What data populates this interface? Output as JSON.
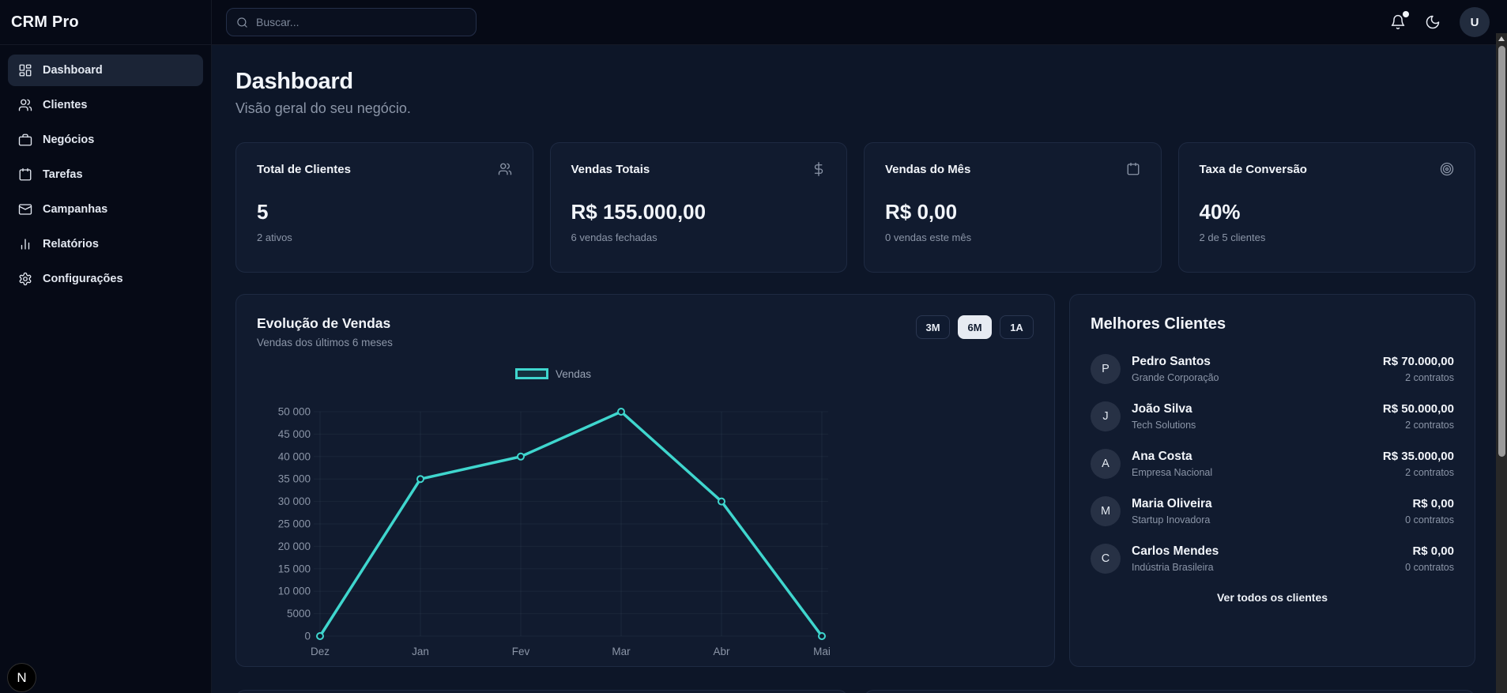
{
  "app": {
    "brand": "CRM Pro"
  },
  "topbar": {
    "search": {
      "placeholder": "Buscar...",
      "icon": "search"
    },
    "notifications": {
      "icon": "bell",
      "has_unread": true
    },
    "theme_toggle": {
      "icon": "moon"
    },
    "avatar": {
      "initial": "U"
    }
  },
  "sidebar": {
    "items": [
      {
        "label": "Dashboard",
        "icon": "dashboard",
        "active": true
      },
      {
        "label": "Clientes",
        "icon": "users",
        "active": false
      },
      {
        "label": "Negócios",
        "icon": "briefcase",
        "active": false
      },
      {
        "label": "Tarefas",
        "icon": "calendar",
        "active": false
      },
      {
        "label": "Campanhas",
        "icon": "mail",
        "active": false
      },
      {
        "label": "Relatórios",
        "icon": "bar-chart",
        "active": false
      },
      {
        "label": "Configurações",
        "icon": "gear",
        "active": false
      }
    ]
  },
  "page": {
    "title": "Dashboard",
    "subtitle": "Visão geral do seu negócio."
  },
  "stats": [
    {
      "title": "Total de Clientes",
      "icon": "users",
      "value": "5",
      "sub": "2 ativos"
    },
    {
      "title": "Vendas Totais",
      "icon": "dollar",
      "value": "R$ 155.000,00",
      "sub": "6 vendas fechadas"
    },
    {
      "title": "Vendas do Mês",
      "icon": "calendar",
      "value": "R$ 0,00",
      "sub": "0 vendas este mês"
    },
    {
      "title": "Taxa de Conversão",
      "icon": "target",
      "value": "40%",
      "sub": "2 de 5 clientes"
    }
  ],
  "sales_panel": {
    "title": "Evolução de Vendas",
    "subtitle": "Vendas dos últimos 6 meses",
    "range_buttons": [
      {
        "label": "3M",
        "active": false
      },
      {
        "label": "6M",
        "active": true
      },
      {
        "label": "1A",
        "active": false
      }
    ]
  },
  "chart_data": {
    "type": "line",
    "title": "Evolução de Vendas",
    "categories": [
      "Dez",
      "Jan",
      "Fev",
      "Mar",
      "Abr",
      "Mai"
    ],
    "series": [
      {
        "name": "Vendas",
        "color": "#3fd6ce",
        "values": [
          0,
          35000,
          40000,
          50000,
          30000,
          0
        ]
      }
    ],
    "ylim": [
      0,
      50000
    ],
    "y_ticks": [
      {
        "value": 0,
        "label": "0"
      },
      {
        "value": 5000,
        "label": "5000"
      },
      {
        "value": 10000,
        "label": "10 000"
      },
      {
        "value": 15000,
        "label": "15 000"
      },
      {
        "value": 20000,
        "label": "20 000"
      },
      {
        "value": 25000,
        "label": "25 000"
      },
      {
        "value": 30000,
        "label": "30 000"
      },
      {
        "value": 35000,
        "label": "35 000"
      },
      {
        "value": 40000,
        "label": "40 000"
      },
      {
        "value": 45000,
        "label": "45 000"
      },
      {
        "value": 50000,
        "label": "50 000"
      }
    ],
    "grid": true,
    "legend_position": "top"
  },
  "top_clients": {
    "title": "Melhores Clientes",
    "items": [
      {
        "initial": "P",
        "name": "Pedro Santos",
        "company": "Grande Corporação",
        "value": "R$ 70.000,00",
        "contracts": "2 contratos"
      },
      {
        "initial": "J",
        "name": "João Silva",
        "company": "Tech Solutions",
        "value": "R$ 50.000,00",
        "contracts": "2 contratos"
      },
      {
        "initial": "A",
        "name": "Ana Costa",
        "company": "Empresa Nacional",
        "value": "R$ 35.000,00",
        "contracts": "2 contratos"
      },
      {
        "initial": "M",
        "name": "Maria Oliveira",
        "company": "Startup Inovadora",
        "value": "R$ 0,00",
        "contracts": "0 contratos"
      },
      {
        "initial": "C",
        "name": "Carlos Mendes",
        "company": "Indústria Brasileira",
        "value": "R$ 0,00",
        "contracts": "0 contratos"
      }
    ],
    "footer_link": "Ver todos os clientes"
  },
  "dev_badge": {
    "label": "N"
  },
  "colors": {
    "accent": "#3fd6ce",
    "background": "#0d1628",
    "surface": "#111b2f",
    "border": "#1e2a42",
    "muted_text": "#8b95a7"
  }
}
